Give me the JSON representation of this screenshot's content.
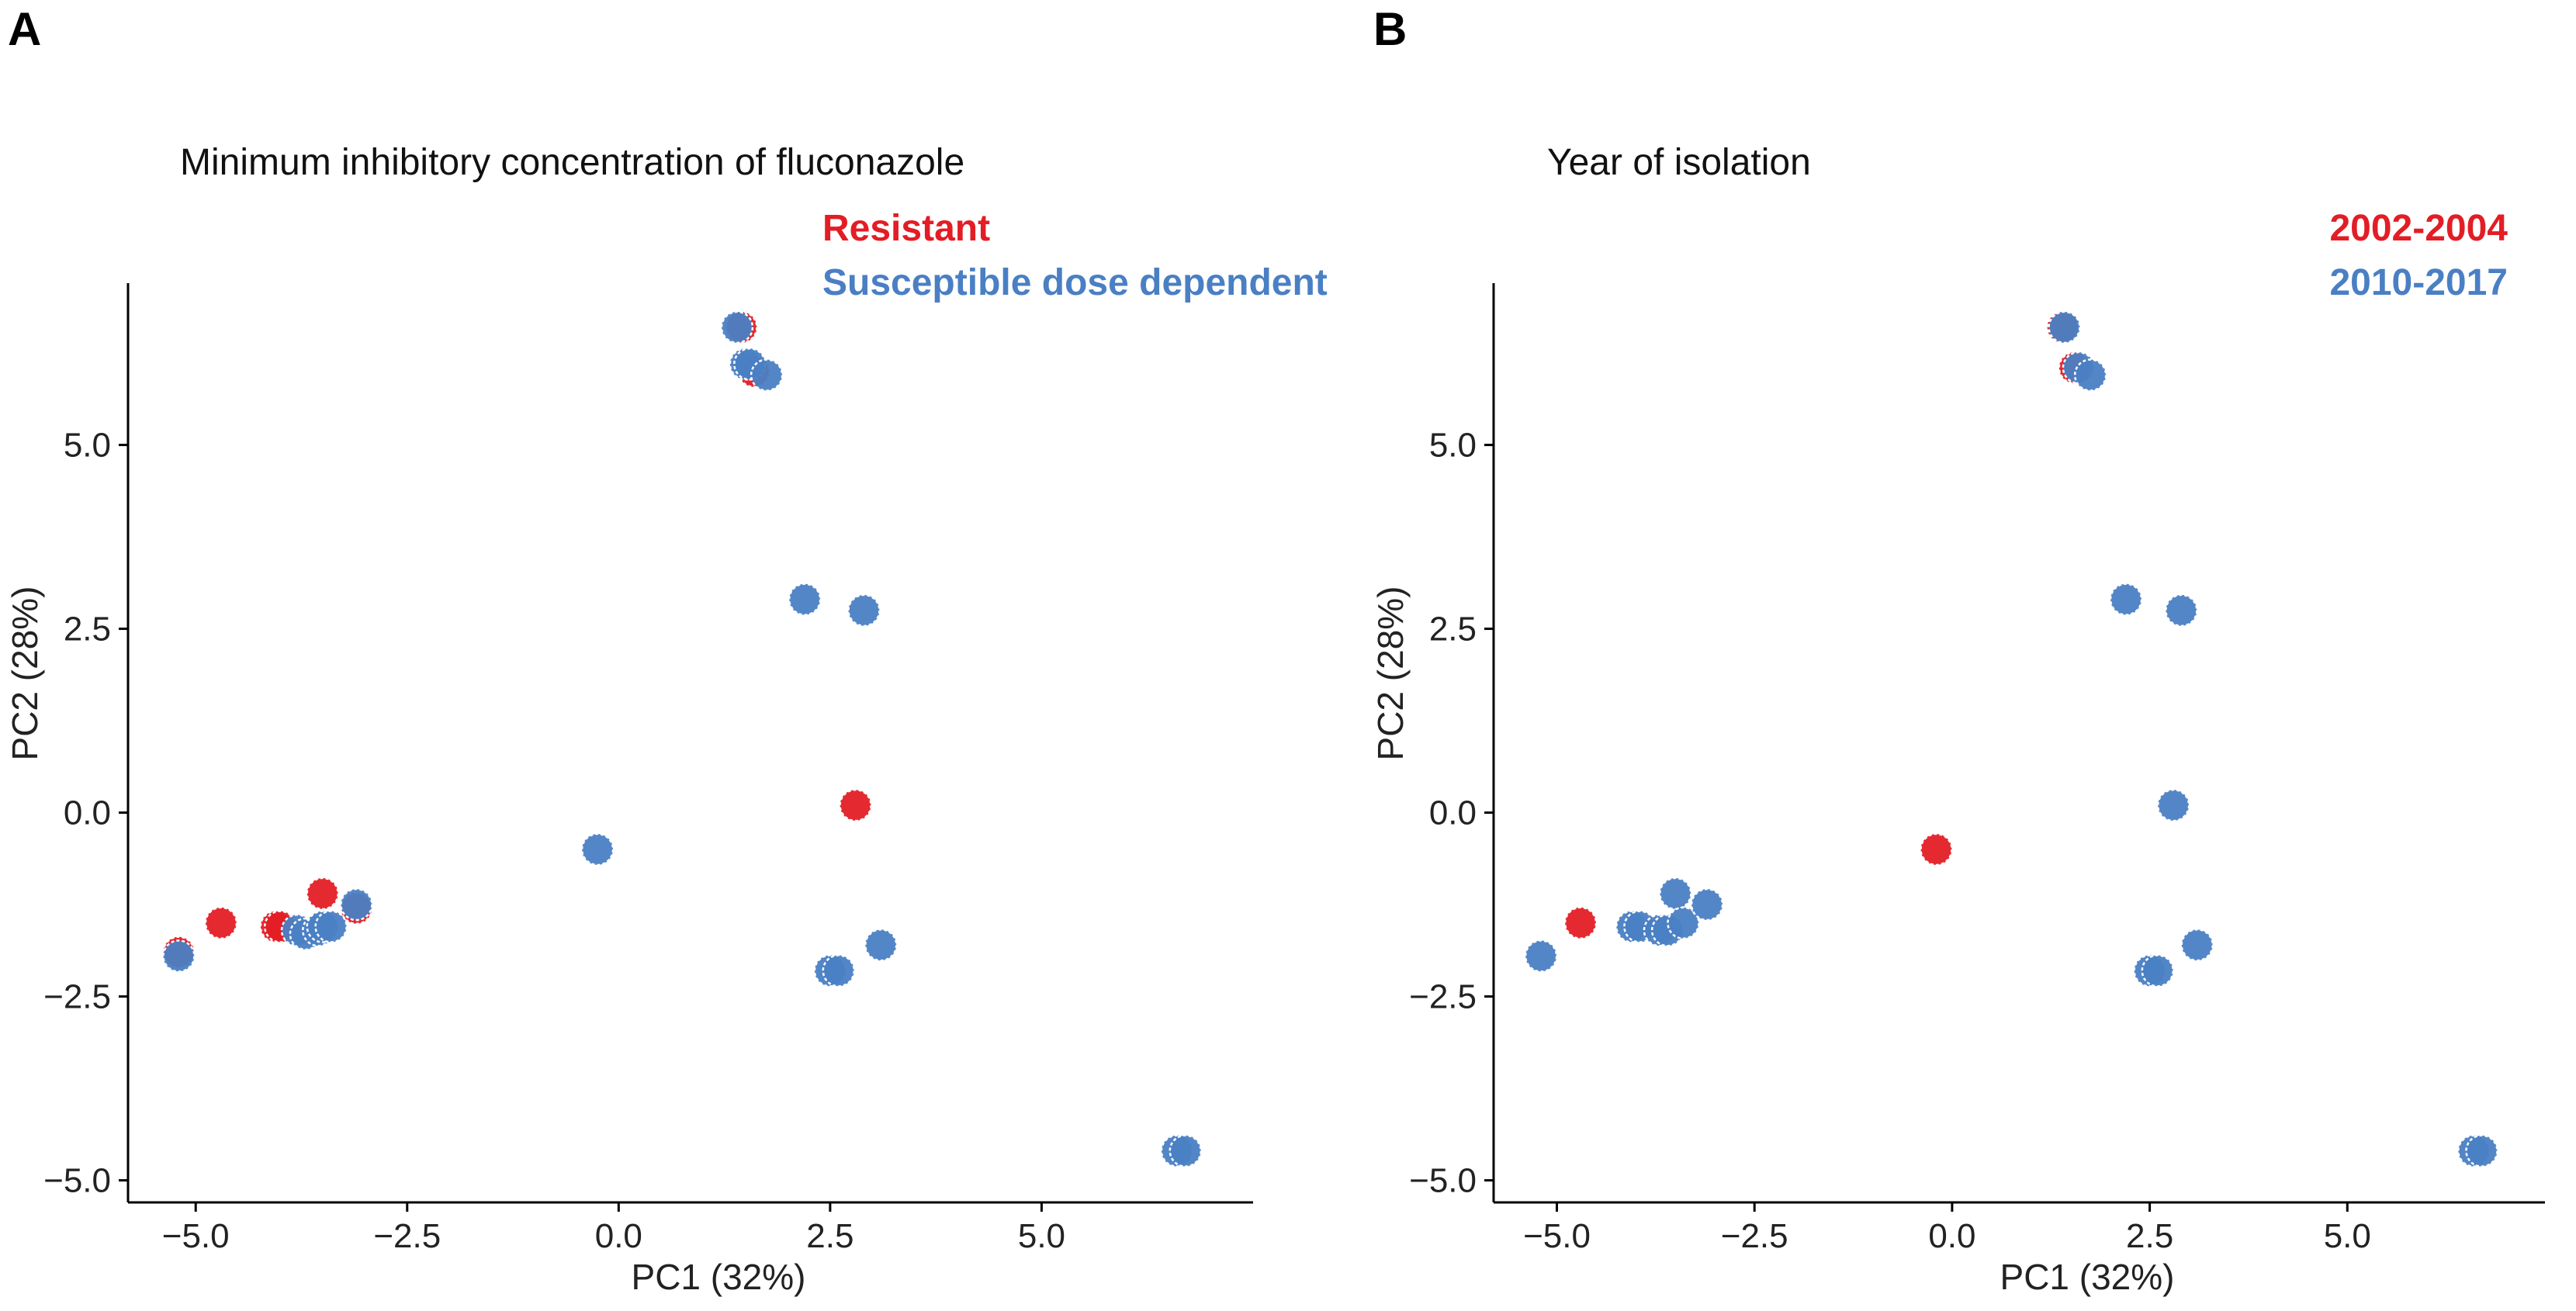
{
  "colors": {
    "red": "#e31d25",
    "blue": "#4a7fc4"
  },
  "chart_data": [
    {
      "type": "scatter",
      "panel_label": "A",
      "title": "Minimum inhibitory concentration of fluconazole",
      "xlabel": "PC1 (32%)",
      "ylabel": "PC2 (28%)",
      "xlim": [
        -5.8,
        7.5
      ],
      "ylim": [
        -5.3,
        7.2
      ],
      "xticks": [
        -5.0,
        -2.5,
        0.0,
        2.5,
        5.0
      ],
      "xtick_labels": [
        "−5.0",
        "−2.5",
        "0.0",
        "2.5",
        "5.0"
      ],
      "yticks": [
        -5.0,
        -2.5,
        0.0,
        2.5,
        5.0
      ],
      "ytick_labels": [
        "−5.0",
        "−2.5",
        "0.0",
        "2.5",
        "5.0"
      ],
      "legend_position": "top-right",
      "series": [
        {
          "name": "Resistant",
          "color": "#e31d25",
          "points": [
            [
              -5.2,
              -1.9
            ],
            [
              -4.7,
              -1.5
            ],
            [
              -4.05,
              -1.55
            ],
            [
              -4.0,
              -1.55
            ],
            [
              -3.5,
              -1.1
            ],
            [
              -3.1,
              -1.3
            ],
            [
              1.45,
              6.6
            ],
            [
              1.6,
              6.0
            ],
            [
              2.8,
              0.1
            ]
          ]
        },
        {
          "name": "Susceptible dose dependent",
          "color": "#4a7fc4",
          "points": [
            [
              -5.2,
              -1.95
            ],
            [
              -3.8,
              -1.6
            ],
            [
              -3.7,
              -1.65
            ],
            [
              -3.55,
              -1.6
            ],
            [
              -3.5,
              -1.55
            ],
            [
              -3.4,
              -1.55
            ],
            [
              -3.1,
              -1.25
            ],
            [
              -0.25,
              -0.5
            ],
            [
              1.4,
              6.6
            ],
            [
              1.5,
              6.1
            ],
            [
              1.55,
              6.1
            ],
            [
              1.75,
              5.95
            ],
            [
              2.2,
              2.9
            ],
            [
              2.9,
              2.75
            ],
            [
              2.5,
              -2.15
            ],
            [
              2.6,
              -2.15
            ],
            [
              3.1,
              -1.8
            ],
            [
              6.6,
              -4.6
            ],
            [
              6.7,
              -4.6
            ]
          ]
        }
      ]
    },
    {
      "type": "scatter",
      "panel_label": "B",
      "title": "Year of isolation",
      "xlabel": "PC1 (32%)",
      "ylabel": "PC2 (28%)",
      "xlim": [
        -5.8,
        7.5
      ],
      "ylim": [
        -5.3,
        7.2
      ],
      "xticks": [
        -5.0,
        -2.5,
        0.0,
        2.5,
        5.0
      ],
      "xtick_labels": [
        "−5.0",
        "−2.5",
        "0.0",
        "2.5",
        "5.0"
      ],
      "yticks": [
        -5.0,
        -2.5,
        0.0,
        2.5,
        5.0
      ],
      "ytick_labels": [
        "−5.0",
        "−2.5",
        "0.0",
        "2.5",
        "5.0"
      ],
      "legend_position": "top-right",
      "series": [
        {
          "name": "2002-2004",
          "color": "#e31d25",
          "points": [
            [
              -4.7,
              -1.5
            ],
            [
              -0.2,
              -0.5
            ],
            [
              1.4,
              6.6
            ],
            [
              1.55,
              6.05
            ]
          ]
        },
        {
          "name": "2010-2017",
          "color": "#4a7fc4",
          "points": [
            [
              -5.2,
              -1.95
            ],
            [
              -4.05,
              -1.55
            ],
            [
              -3.95,
              -1.55
            ],
            [
              -3.7,
              -1.6
            ],
            [
              -3.6,
              -1.6
            ],
            [
              -3.5,
              -1.1
            ],
            [
              -3.4,
              -1.5
            ],
            [
              -3.1,
              -1.25
            ],
            [
              1.42,
              6.6
            ],
            [
              1.6,
              6.05
            ],
            [
              1.75,
              5.95
            ],
            [
              2.2,
              2.9
            ],
            [
              2.9,
              2.75
            ],
            [
              2.8,
              0.1
            ],
            [
              2.5,
              -2.15
            ],
            [
              2.6,
              -2.15
            ],
            [
              3.1,
              -1.8
            ],
            [
              6.6,
              -4.6
            ],
            [
              6.7,
              -4.6
            ]
          ]
        }
      ]
    }
  ]
}
